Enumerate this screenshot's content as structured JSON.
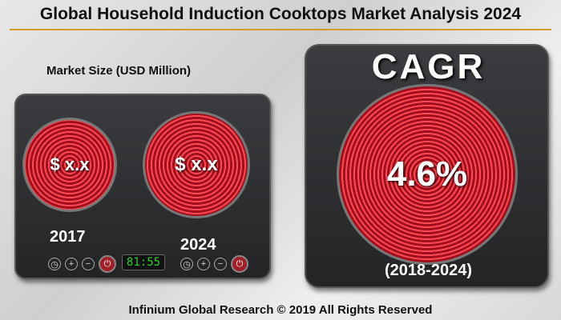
{
  "title": "Global Household Induction Cooktops Market Analysis 2024",
  "market_size": {
    "label": "Market Size (USD Million)",
    "values": [
      {
        "year": "2017",
        "value": "$ x.x"
      },
      {
        "year": "2024",
        "value": "$ x.x"
      }
    ]
  },
  "display": "81:55",
  "cagr": {
    "label": "CAGR",
    "value": "4.6%",
    "period": "(2018-2024)"
  },
  "footer": "Infinium Global Research © 2019 All Rights Reserved",
  "colors": {
    "accent": "#d89a2a",
    "burner": "#e0303c"
  }
}
